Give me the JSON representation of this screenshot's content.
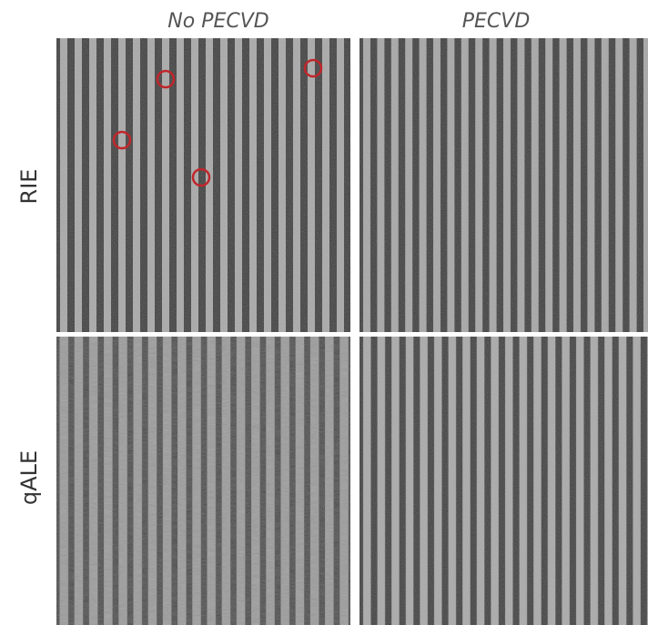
{
  "columns": [
    "No PECVD",
    "PECVD"
  ],
  "rows": [
    "RIE",
    "qALE"
  ]
}
